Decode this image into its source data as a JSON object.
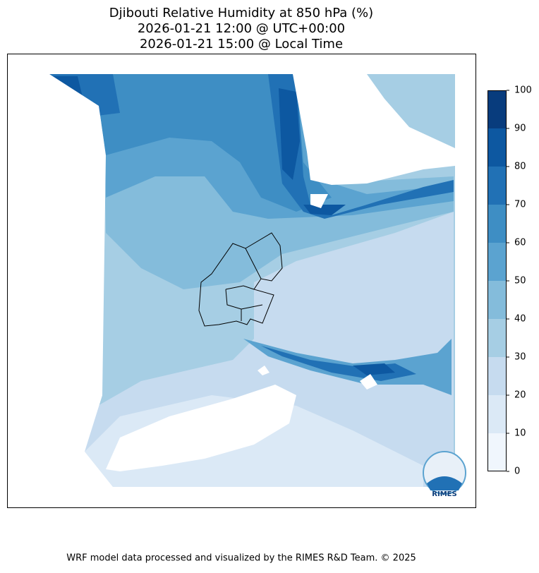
{
  "title": [
    "Djibouti Relative Humidity at 850 hPa (%)",
    "2026-01-21 12:00 @ UTC+00:00",
    "2026-01-21 15:00 @ Local Time"
  ],
  "colorbar": {
    "ticks": [
      0,
      10,
      20,
      30,
      40,
      50,
      60,
      70,
      80,
      90,
      100
    ],
    "colors": [
      "#f0f6fd",
      "#dbe9f6",
      "#c6dbef",
      "#a6cee4",
      "#84bcdb",
      "#5ba3d0",
      "#3e8ec4",
      "#2171b5",
      "#0d58a1",
      "#083c7d"
    ]
  },
  "logo": "RIMES",
  "footer": "WRF model data processed and visualized by the RIMES R&D Team. © 2025"
}
